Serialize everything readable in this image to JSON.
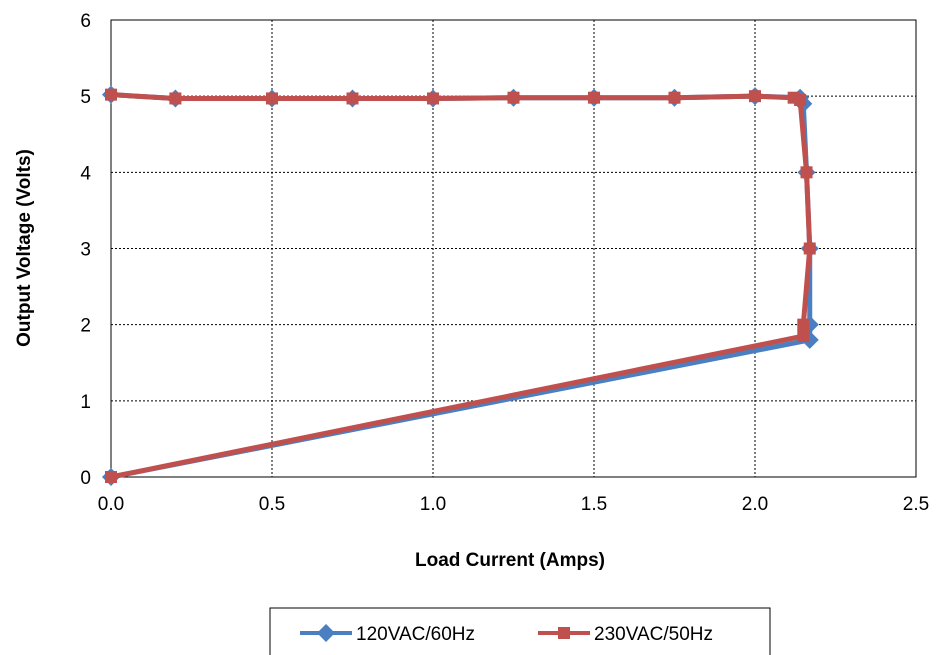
{
  "chart_data": {
    "type": "line",
    "xlabel": "Load Current (Amps)",
    "ylabel": "Output Voltage (Volts)",
    "xlim": [
      0,
      2.5
    ],
    "ylim": [
      0,
      6
    ],
    "x_ticks": [
      "0.0",
      "0.5",
      "1.0",
      "1.5",
      "2.0",
      "2.5"
    ],
    "y_ticks": [
      "0",
      "1",
      "2",
      "3",
      "4",
      "5",
      "6"
    ],
    "grid": true,
    "legend_position": "bottom",
    "series": [
      {
        "name": "120VAC/60Hz",
        "color": "#4a7fc1",
        "marker": "diamond",
        "points": [
          [
            0.0,
            5.02
          ],
          [
            0.2,
            4.97
          ],
          [
            0.5,
            4.97
          ],
          [
            0.75,
            4.97
          ],
          [
            1.0,
            4.97
          ],
          [
            1.25,
            4.98
          ],
          [
            1.5,
            4.98
          ],
          [
            1.75,
            4.98
          ],
          [
            2.0,
            5.0
          ],
          [
            2.14,
            4.98
          ],
          [
            2.15,
            4.9
          ],
          [
            2.16,
            4.0
          ],
          [
            2.17,
            3.0
          ],
          [
            2.17,
            2.0
          ],
          [
            2.17,
            1.8
          ],
          [
            0.0,
            0.0
          ]
        ]
      },
      {
        "name": "230VAC/50Hz",
        "color": "#c0504d",
        "marker": "square",
        "points": [
          [
            0.0,
            5.02
          ],
          [
            0.2,
            4.97
          ],
          [
            0.5,
            4.97
          ],
          [
            0.75,
            4.97
          ],
          [
            1.0,
            4.97
          ],
          [
            1.25,
            4.98
          ],
          [
            1.5,
            4.98
          ],
          [
            1.75,
            4.98
          ],
          [
            2.0,
            5.0
          ],
          [
            2.12,
            4.98
          ],
          [
            2.14,
            4.95
          ],
          [
            2.16,
            4.0
          ],
          [
            2.17,
            3.0
          ],
          [
            2.15,
            2.0
          ],
          [
            2.15,
            1.85
          ],
          [
            0.0,
            0.0
          ]
        ]
      }
    ]
  }
}
